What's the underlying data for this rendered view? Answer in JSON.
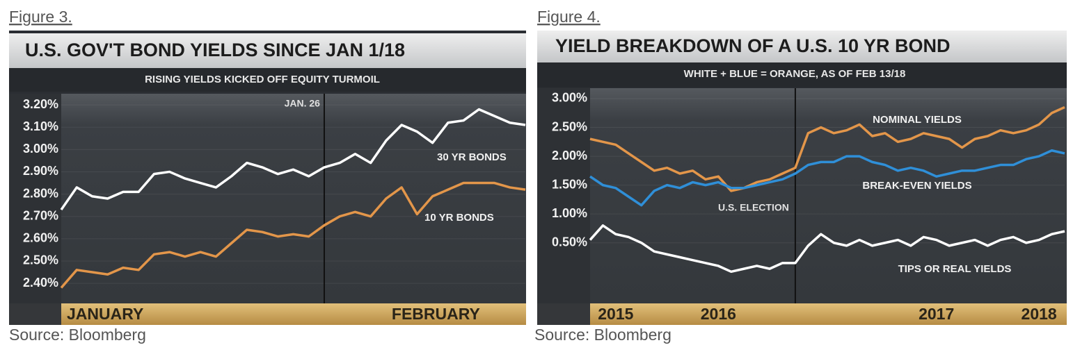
{
  "chart_data": [
    {
      "type": "line",
      "figure_label": "Figure 3.",
      "title": "U.S. GOV'T BOND YIELDS SINCE JAN 1/18",
      "subtitle": "RISING YIELDS KICKED OFF EQUITY TURMOIL",
      "source": "Source: Bloomberg",
      "categories": [
        "JANUARY",
        null,
        null,
        null,
        null,
        null,
        null,
        null,
        null,
        null,
        null,
        null,
        null,
        null,
        null,
        null,
        null,
        null,
        null,
        null,
        null,
        "FEBRUARY",
        null,
        null,
        null,
        null,
        null,
        null,
        null,
        null,
        null
      ],
      "series": [
        {
          "name": "30 YR BONDS",
          "color": "#ffffff",
          "values": [
            2.73,
            2.83,
            2.79,
            2.78,
            2.81,
            2.81,
            2.89,
            2.9,
            2.87,
            2.85,
            2.83,
            2.88,
            2.94,
            2.92,
            2.89,
            2.91,
            2.88,
            2.92,
            2.94,
            2.98,
            2.94,
            3.04,
            3.11,
            3.08,
            3.03,
            3.12,
            3.13,
            3.18,
            3.15,
            3.12,
            3.11
          ]
        },
        {
          "name": "10 YR BONDS",
          "color": "#e3964a",
          "values": [
            2.38,
            2.46,
            2.45,
            2.44,
            2.47,
            2.46,
            2.53,
            2.54,
            2.52,
            2.54,
            2.52,
            2.58,
            2.64,
            2.63,
            2.61,
            2.62,
            2.61,
            2.66,
            2.7,
            2.72,
            2.7,
            2.78,
            2.83,
            2.71,
            2.79,
            2.82,
            2.85,
            2.85,
            2.85,
            2.83,
            2.82
          ]
        }
      ],
      "annotations": [
        {
          "text": "JAN. 26",
          "at_index": 17
        }
      ],
      "ylim": [
        2.31,
        3.25
      ],
      "yticks": [
        {
          "value": 2.4,
          "label": "2.40%"
        },
        {
          "value": 2.5,
          "label": "2.50%"
        },
        {
          "value": 2.6,
          "label": "2.60%"
        },
        {
          "value": 2.7,
          "label": "2.70%"
        },
        {
          "value": 2.8,
          "label": "2.80%"
        },
        {
          "value": 2.9,
          "label": "2.90%"
        },
        {
          "value": 3.0,
          "label": "3.00%"
        },
        {
          "value": 3.1,
          "label": "3.10%"
        },
        {
          "value": 3.2,
          "label": "3.20%"
        }
      ],
      "grid": true
    },
    {
      "type": "line",
      "figure_label": "Figure 4.",
      "title": "YIELD BREAKDOWN OF A U.S. 10 YR BOND",
      "subtitle": "WHITE + BLUE = ORANGE, AS OF FEB 13/18",
      "source": "Source: Bloomberg",
      "categories": [
        null,
        null,
        "2015",
        null,
        null,
        null,
        null,
        null,
        null,
        null,
        "2016",
        null,
        null,
        null,
        null,
        null,
        null,
        null,
        null,
        null,
        null,
        null,
        null,
        null,
        null,
        null,
        null,
        "2017",
        null,
        null,
        null,
        null,
        null,
        null,
        null,
        "2018",
        null,
        null
      ],
      "series": [
        {
          "name": "NOMINAL YIELDS",
          "color": "#e3964a",
          "values": [
            2.3,
            2.25,
            2.2,
            2.05,
            1.9,
            1.75,
            1.8,
            1.7,
            1.75,
            1.6,
            1.65,
            1.4,
            1.45,
            1.55,
            1.6,
            1.7,
            1.8,
            2.4,
            2.5,
            2.4,
            2.45,
            2.55,
            2.35,
            2.4,
            2.25,
            2.3,
            2.4,
            2.35,
            2.3,
            2.15,
            2.3,
            2.35,
            2.45,
            2.4,
            2.45,
            2.55,
            2.75,
            2.85
          ]
        },
        {
          "name": "BREAK-EVEN YIELDS",
          "color": "#2f8fd8",
          "values": [
            1.65,
            1.5,
            1.45,
            1.3,
            1.15,
            1.4,
            1.5,
            1.45,
            1.55,
            1.5,
            1.55,
            1.45,
            1.45,
            1.5,
            1.55,
            1.6,
            1.7,
            1.85,
            1.9,
            1.9,
            2.0,
            2.0,
            1.9,
            1.85,
            1.75,
            1.8,
            1.75,
            1.65,
            1.7,
            1.75,
            1.75,
            1.8,
            1.85,
            1.85,
            1.95,
            2.0,
            2.1,
            2.05
          ]
        },
        {
          "name": "TIPS OR REAL YIELDS",
          "color": "#ffffff",
          "values": [
            0.55,
            0.8,
            0.65,
            0.6,
            0.5,
            0.35,
            0.3,
            0.25,
            0.2,
            0.15,
            0.1,
            0.0,
            0.05,
            0.1,
            0.05,
            0.15,
            0.15,
            0.45,
            0.65,
            0.5,
            0.45,
            0.55,
            0.45,
            0.5,
            0.55,
            0.45,
            0.6,
            0.55,
            0.45,
            0.5,
            0.55,
            0.45,
            0.55,
            0.6,
            0.5,
            0.55,
            0.65,
            0.7
          ]
        }
      ],
      "annotations": [
        {
          "text": "U.S. ELECTION",
          "at_index": 16
        }
      ],
      "ylim": [
        -0.55,
        3.18
      ],
      "yticks": [
        {
          "value": 0.5,
          "label": "0.50%"
        },
        {
          "value": 1.0,
          "label": "1.00%"
        },
        {
          "value": 1.5,
          "label": "1.50%"
        },
        {
          "value": 2.0,
          "label": "2.00%"
        },
        {
          "value": 2.5,
          "label": "2.50%"
        },
        {
          "value": 3.0,
          "label": "3.00%"
        }
      ],
      "grid": true
    }
  ]
}
